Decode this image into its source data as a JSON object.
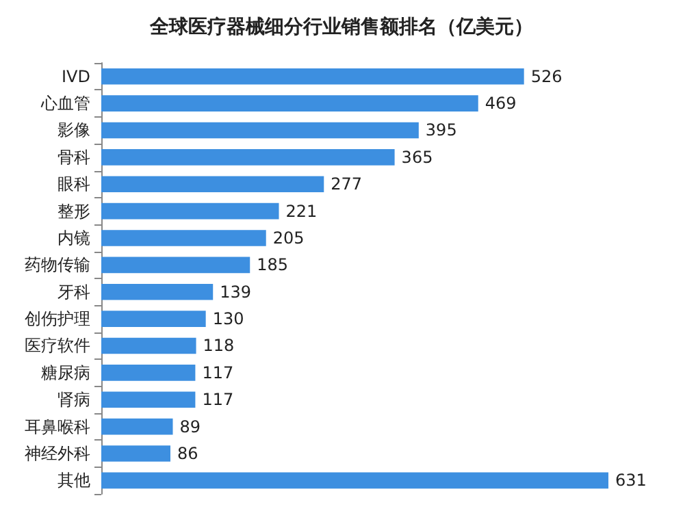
{
  "chart_data": {
    "type": "bar",
    "orientation": "horizontal",
    "title": "全球医疗器械细分行业销售额排名（亿美元）",
    "categories": [
      "IVD",
      "心血管",
      "影像",
      "骨科",
      "眼科",
      "整形",
      "内镜",
      "药物传输",
      "牙科",
      "创伤护理",
      "医疗软件",
      "糖尿病",
      "肾病",
      "耳鼻喉科",
      "神经外科",
      "其他"
    ],
    "values": [
      526,
      469,
      395,
      365,
      277,
      221,
      205,
      185,
      139,
      130,
      118,
      117,
      117,
      89,
      86,
      631
    ],
    "color": "#3d8fe0",
    "data_labels": true
  }
}
